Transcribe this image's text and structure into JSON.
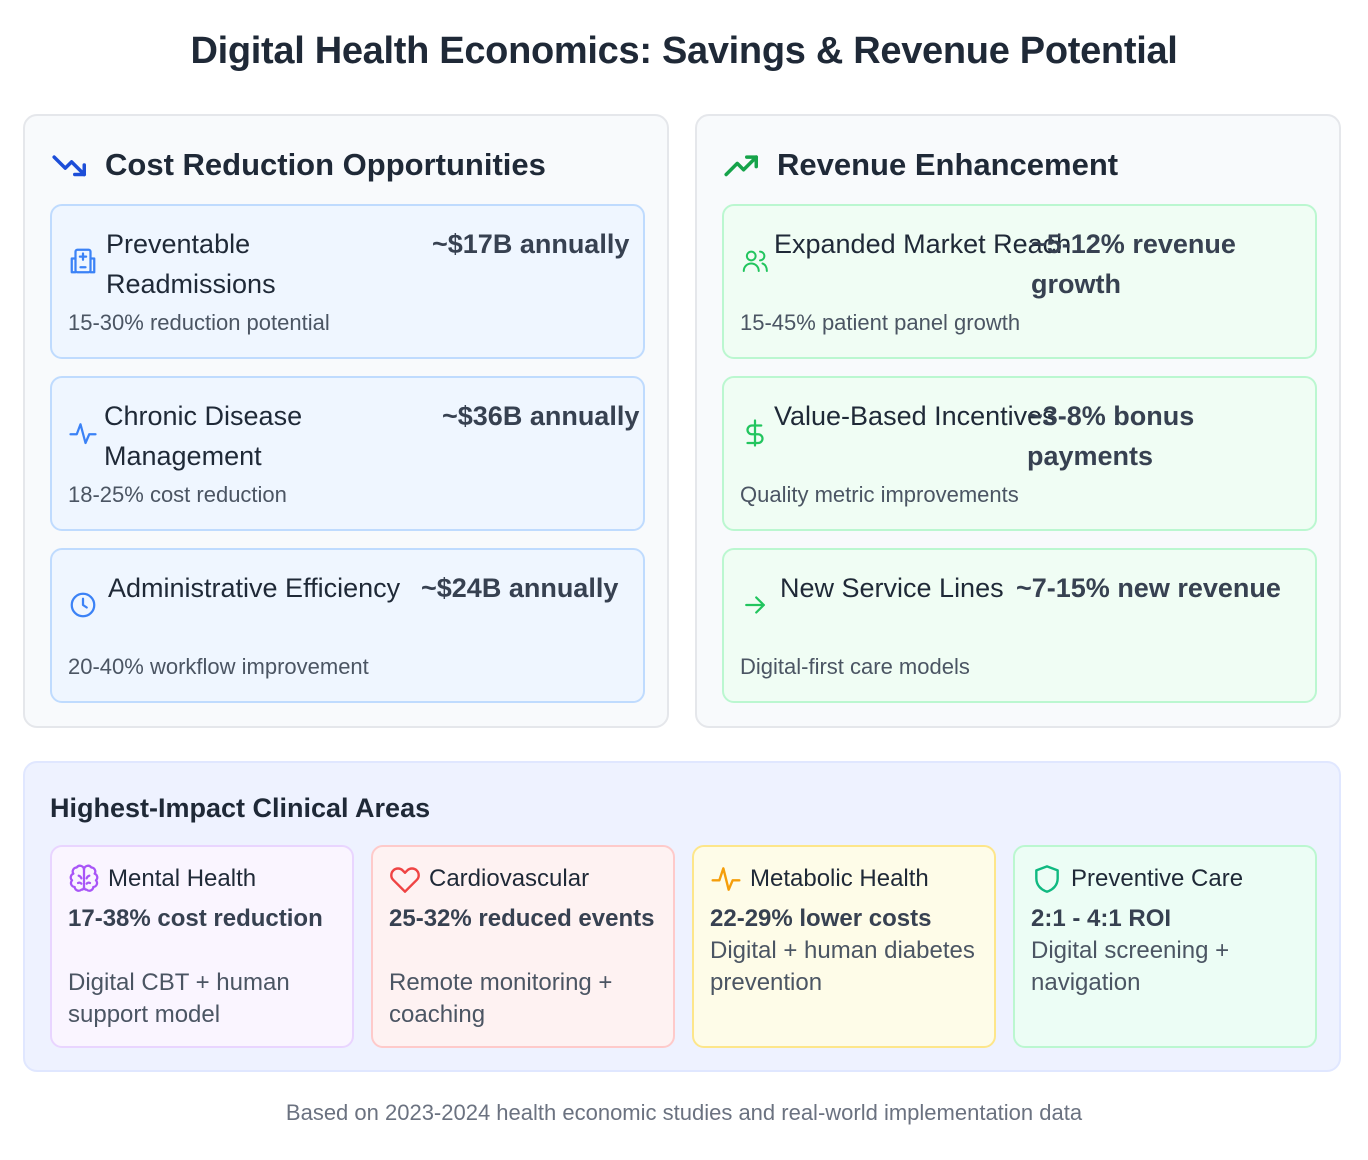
{
  "title": "Digital Health Economics: Savings & Revenue Potential",
  "cost_panel": {
    "heading": "Cost Reduction Opportunities",
    "icon": "trending-down-icon",
    "items": [
      {
        "name": "Preventable Readmissions",
        "value": "~$17B annually",
        "sub": "15-30% reduction potential",
        "icon": "hospital-icon"
      },
      {
        "name": "Chronic Disease Management",
        "value": "~$36B annually",
        "sub": "18-25% cost reduction",
        "icon": "activity-icon"
      },
      {
        "name": "Administrative Efficiency",
        "value": "~$24B annually",
        "sub": "20-40% workflow improvement",
        "icon": "clock-icon"
      }
    ]
  },
  "revenue_panel": {
    "heading": "Revenue Enhancement",
    "icon": "trending-up-icon",
    "items": [
      {
        "name": "Expanded Market Reach",
        "value": "~5-12% revenue growth",
        "sub": "15-45% patient panel growth",
        "icon": "users-icon"
      },
      {
        "name": "Value-Based Incentives",
        "value": "~3-8% bonus payments",
        "sub": "Quality metric improvements",
        "icon": "dollar-icon"
      },
      {
        "name": "New Service Lines",
        "value": "~7-15% new revenue",
        "sub": "Digital-first care models",
        "icon": "arrow-right-icon"
      }
    ]
  },
  "clinical": {
    "heading": "Highest-Impact Clinical Areas",
    "areas": [
      {
        "name": "Mental Health",
        "metric": "17-38% cost reduction",
        "desc": "Digital CBT + human support model",
        "icon": "brain-icon",
        "color": "#a855f7"
      },
      {
        "name": "Cardiovascular",
        "metric": "25-32% reduced events",
        "desc": "Remote monitoring + coaching",
        "icon": "heart-icon",
        "color": "#ef4444"
      },
      {
        "name": "Metabolic Health",
        "metric": "22-29% lower costs",
        "desc": "Digital + human diabetes prevention",
        "icon": "activity-icon",
        "color": "#f59e0b"
      },
      {
        "name": "Preventive Care",
        "metric": "2:1 - 4:1 ROI",
        "desc": "Digital screening + navigation",
        "icon": "shield-icon",
        "color": "#10b981"
      }
    ]
  },
  "footer": "Based on 2023-2024 health economic studies and real-world implementation data",
  "colors": {
    "blue": "#3b82f6",
    "green": "#22c55e"
  }
}
